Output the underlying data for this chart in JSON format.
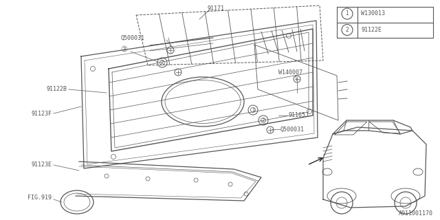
{
  "bg_color": "#ffffff",
  "line_color": "#555555",
  "fig_number": "A911001170",
  "legend": [
    {
      "num": "1",
      "code": "W130013"
    },
    {
      "num": "2",
      "code": "91122E"
    }
  ]
}
